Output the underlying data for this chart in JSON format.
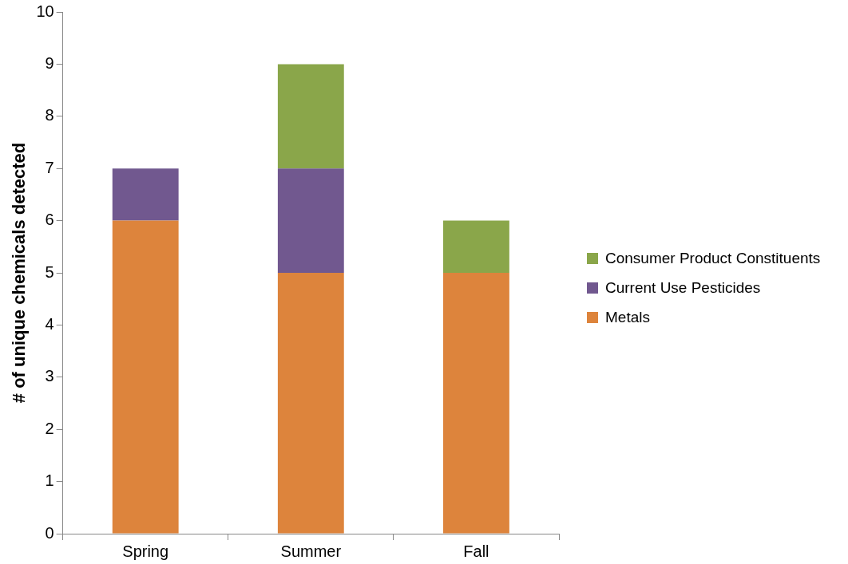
{
  "chart_data": {
    "type": "bar",
    "ylabel": "# of unique chemicals detected",
    "categories": [
      "Spring",
      "Summer",
      "Fall"
    ],
    "series": [
      {
        "name": "Metals",
        "color": "#dd843c",
        "values": [
          6,
          5,
          5
        ]
      },
      {
        "name": "Current Use Pesticides",
        "color": "#71588f",
        "values": [
          1,
          2,
          0
        ]
      },
      {
        "name": "Consumer Product Constituents",
        "color": "#8aa64a",
        "values": [
          0,
          2,
          1
        ]
      }
    ],
    "stacked": true,
    "ylim": [
      0,
      10
    ],
    "yticks": [
      0,
      1,
      2,
      3,
      4,
      5,
      6,
      7,
      8,
      9,
      10
    ],
    "grid": false,
    "legend": "right"
  }
}
